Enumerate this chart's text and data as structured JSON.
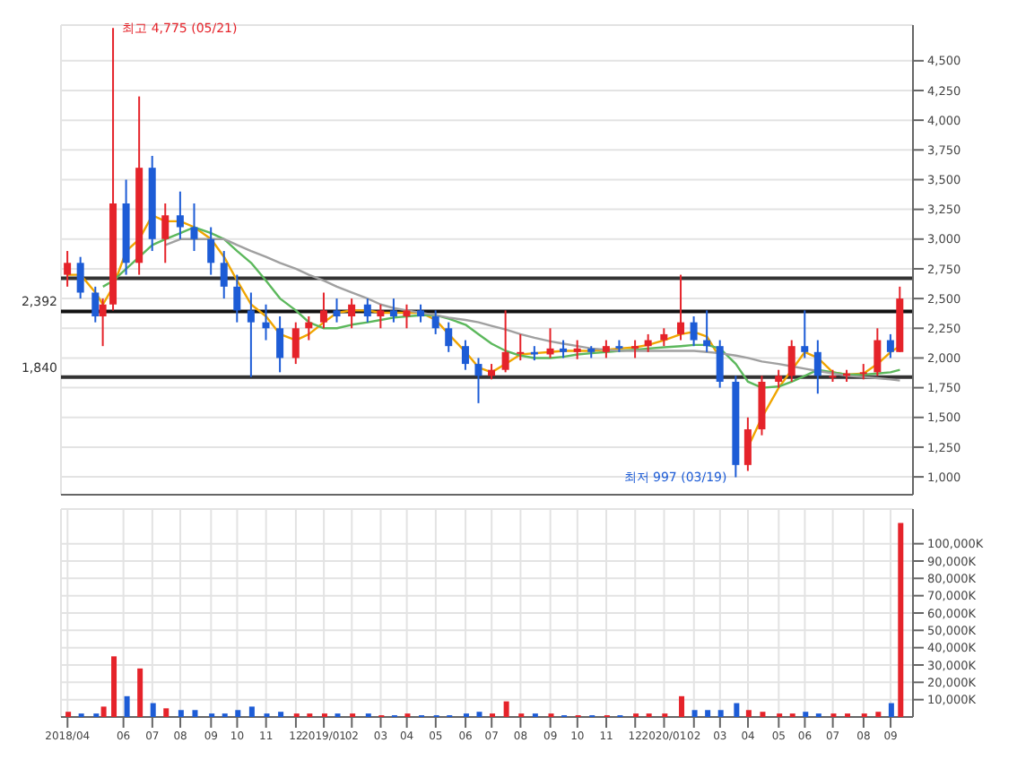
{
  "chart_data": [
    {
      "type": "candlestick",
      "x": [
        "2018-04-02",
        "2018-04-16",
        "2018-05-02",
        "2018-05-10",
        "2018-05-21",
        "2018-06-04",
        "2018-06-18",
        "2018-07-02",
        "2018-07-16",
        "2018-08-01",
        "2018-08-16",
        "2018-09-03",
        "2018-09-17",
        "2018-10-01",
        "2018-10-16",
        "2018-11-01",
        "2018-11-16",
        "2018-12-03",
        "2018-12-17",
        "2019-01-02",
        "2019-01-16",
        "2019-02-01",
        "2019-02-18",
        "2019-03-04",
        "2019-03-18",
        "2019-04-01",
        "2019-04-16",
        "2019-05-02",
        "2019-05-16",
        "2019-06-03",
        "2019-06-17",
        "2019-07-01",
        "2019-07-16",
        "2019-08-01",
        "2019-08-16",
        "2019-09-02",
        "2019-09-16",
        "2019-10-01",
        "2019-10-16",
        "2019-11-01",
        "2019-11-15",
        "2019-12-02",
        "2019-12-16",
        "2020-01-02",
        "2020-01-20",
        "2020-02-03",
        "2020-02-17",
        "2020-03-02",
        "2020-03-19",
        "2020-04-01",
        "2020-04-16",
        "2020-05-04",
        "2020-05-18",
        "2020-06-01",
        "2020-06-15",
        "2020-07-01",
        "2020-07-16",
        "2020-08-03",
        "2020-08-18",
        "2020-09-01",
        "2020-09-11"
      ],
      "ohlc": [
        [
          2700,
          2900,
          2600,
          2800
        ],
        [
          2800,
          2850,
          2500,
          2550
        ],
        [
          2550,
          2600,
          2300,
          2350
        ],
        [
          2350,
          2500,
          2100,
          2450
        ],
        [
          2450,
          4775,
          2400,
          3300
        ],
        [
          3300,
          3500,
          2700,
          2800
        ],
        [
          2800,
          4200,
          2700,
          3600
        ],
        [
          3600,
          3700,
          2900,
          3000
        ],
        [
          3000,
          3300,
          2800,
          3200
        ],
        [
          3200,
          3400,
          3000,
          3100
        ],
        [
          3100,
          3300,
          2900,
          3000
        ],
        [
          3000,
          3100,
          2700,
          2800
        ],
        [
          2800,
          2900,
          2500,
          2600
        ],
        [
          2600,
          2700,
          2300,
          2400
        ],
        [
          2400,
          2550,
          1840,
          2300
        ],
        [
          2300,
          2450,
          2150,
          2250
        ],
        [
          2250,
          2350,
          1880,
          2000
        ],
        [
          2000,
          2300,
          1950,
          2250
        ],
        [
          2250,
          2350,
          2150,
          2300
        ],
        [
          2300,
          2550,
          2250,
          2400
        ],
        [
          2400,
          2500,
          2300,
          2350
        ],
        [
          2350,
          2500,
          2250,
          2450
        ],
        [
          2450,
          2500,
          2300,
          2350
        ],
        [
          2350,
          2450,
          2250,
          2400
        ],
        [
          2400,
          2500,
          2300,
          2350
        ],
        [
          2350,
          2450,
          2250,
          2400
        ],
        [
          2400,
          2450,
          2300,
          2350
        ],
        [
          2350,
          2400,
          2200,
          2250
        ],
        [
          2250,
          2300,
          2050,
          2100
        ],
        [
          2100,
          2150,
          1900,
          1950
        ],
        [
          1950,
          2000,
          1620,
          1850
        ],
        [
          1850,
          1950,
          1820,
          1900
        ],
        [
          1900,
          2400,
          1880,
          2050
        ],
        [
          2050,
          2200,
          1980,
          2050
        ],
        [
          2050,
          2100,
          1980,
          2030
        ],
        [
          2030,
          2250,
          2000,
          2080
        ],
        [
          2080,
          2150,
          2000,
          2050
        ],
        [
          2050,
          2150,
          1990,
          2080
        ],
        [
          2080,
          2100,
          2000,
          2050
        ],
        [
          2050,
          2150,
          2000,
          2100
        ],
        [
          2100,
          2150,
          2050,
          2080
        ],
        [
          2080,
          2150,
          2000,
          2100
        ],
        [
          2100,
          2200,
          2050,
          2150
        ],
        [
          2150,
          2250,
          2100,
          2200
        ],
        [
          2200,
          2700,
          2150,
          2300
        ],
        [
          2300,
          2350,
          2100,
          2150
        ],
        [
          2150,
          2400,
          2050,
          2100
        ],
        [
          2100,
          2150,
          1750,
          1800
        ],
        [
          1800,
          1850,
          997,
          1100
        ],
        [
          1100,
          1500,
          1050,
          1400
        ],
        [
          1400,
          1850,
          1350,
          1800
        ],
        [
          1800,
          1900,
          1750,
          1850
        ],
        [
          1850,
          2150,
          1800,
          2100
        ],
        [
          2100,
          2400,
          2000,
          2050
        ],
        [
          2050,
          2150,
          1700,
          1850
        ],
        [
          1850,
          1900,
          1800,
          1850
        ],
        [
          1850,
          1900,
          1800,
          1870
        ],
        [
          1870,
          1950,
          1820,
          1880
        ],
        [
          1880,
          2250,
          1850,
          2150
        ],
        [
          2150,
          2200,
          2000,
          2050
        ],
        [
          2050,
          2600,
          2050,
          2500
        ]
      ],
      "colors": [
        "#e5232a",
        "#1d5cd6",
        "#1d5cd6",
        "#e5232a",
        "#e5232a",
        "#1d5cd6",
        "#e5232a",
        "#1d5cd6",
        "#e5232a",
        "#1d5cd6",
        "#1d5cd6",
        "#1d5cd6",
        "#1d5cd6",
        "#1d5cd6",
        "#1d5cd6",
        "#1d5cd6",
        "#1d5cd6",
        "#e5232a",
        "#e5232a",
        "#e5232a",
        "#1d5cd6",
        "#e5232a",
        "#1d5cd6",
        "#e5232a",
        "#1d5cd6",
        "#e5232a",
        "#1d5cd6",
        "#1d5cd6",
        "#1d5cd6",
        "#1d5cd6",
        "#1d5cd6",
        "#e5232a",
        "#e5232a",
        "#e5232a",
        "#1d5cd6",
        "#e5232a",
        "#1d5cd6",
        "#e5232a",
        "#1d5cd6",
        "#e5232a",
        "#1d5cd6",
        "#e5232a",
        "#e5232a",
        "#e5232a",
        "#e5232a",
        "#1d5cd6",
        "#1d5cd6",
        "#1d5cd6",
        "#1d5cd6",
        "#e5232a",
        "#e5232a",
        "#e5232a",
        "#e5232a",
        "#1d5cd6",
        "#1d5cd6",
        "#e5232a",
        "#e5232a",
        "#e5232a",
        "#e5232a",
        "#1d5cd6",
        "#e5232a"
      ],
      "series": [
        {
          "type": "line",
          "color": "#f0a500",
          "values": [
            2700,
            2700,
            2550,
            2450,
            2600,
            2900,
            3000,
            3200,
            3150,
            3150,
            3100,
            3000,
            2850,
            2650,
            2450,
            2350,
            2200,
            2150,
            2200,
            2300,
            2380,
            2400,
            2400,
            2380,
            2380,
            2380,
            2380,
            2320,
            2200,
            2050,
            1920,
            1880,
            1950,
            2030,
            2040,
            2050,
            2060,
            2060,
            2060,
            2070,
            2080,
            2090,
            2110,
            2150,
            2200,
            2220,
            2180,
            2000,
            null,
            1250,
            1500,
            1750,
            1900,
            2050,
            2000,
            1880,
            1860,
            1870,
            1950,
            2050,
            2100
          ]
        },
        {
          "type": "line",
          "color": "#5cb85c",
          "values": [
            null,
            null,
            null,
            2600,
            2650,
            2750,
            2850,
            2950,
            3000,
            3050,
            3100,
            3050,
            3000,
            2900,
            2800,
            2650,
            2500,
            2400,
            2300,
            2250,
            2250,
            2280,
            2300,
            2320,
            2340,
            2350,
            2360,
            2360,
            2330,
            2280,
            2200,
            2120,
            2060,
            2020,
            2000,
            2000,
            2010,
            2030,
            2040,
            2050,
            2060,
            2070,
            2080,
            2090,
            2100,
            2110,
            2110,
            2080,
            1950,
            1800,
            1750,
            1760,
            1800,
            1850,
            1900,
            1880,
            1860,
            1860,
            1870,
            1880,
            1900
          ]
        },
        {
          "type": "line",
          "color": "#a0a0a0",
          "values": [
            null,
            null,
            null,
            null,
            null,
            null,
            null,
            null,
            2950,
            3000,
            3000,
            3000,
            3000,
            2950,
            2900,
            2850,
            2800,
            2750,
            2700,
            2650,
            2600,
            2550,
            2500,
            2450,
            2420,
            2400,
            2380,
            2360,
            2340,
            2320,
            2300,
            2270,
            2240,
            2200,
            2170,
            2140,
            2120,
            2100,
            2080,
            2070,
            2060,
            2060,
            2060,
            2060,
            2060,
            2060,
            2050,
            2040,
            2020,
            2000,
            1970,
            1950,
            1930,
            1910,
            1890,
            1870,
            1850,
            1840,
            1830,
            1820,
            1810
          ]
        }
      ],
      "xlim": [
        "2018-03-26",
        "2020-09-25"
      ],
      "xticks": [
        {
          "value": "2018-04-02",
          "label": null
        },
        {
          "value": "2018-06-01",
          "label": null
        },
        {
          "value": "2018-07-02",
          "label": null
        },
        {
          "value": "2018-08-01",
          "label": null
        },
        {
          "value": "2018-09-03",
          "label": null
        },
        {
          "value": "2018-10-01",
          "label": null
        },
        {
          "value": "2018-11-01",
          "label": null
        },
        {
          "value": "2018-12-03",
          "label": null
        },
        {
          "value": "2019-01-02",
          "label": null
        },
        {
          "value": "2019-02-01",
          "label": null
        },
        {
          "value": "2019-03-04",
          "label": null
        },
        {
          "value": "2019-04-01",
          "label": null
        },
        {
          "value": "2019-05-02",
          "label": null
        },
        {
          "value": "2019-06-03",
          "label": null
        },
        {
          "value": "2019-07-01",
          "label": null
        },
        {
          "value": "2019-08-01",
          "label": null
        },
        {
          "value": "2019-09-02",
          "label": null
        },
        {
          "value": "2019-10-01",
          "label": null
        },
        {
          "value": "2019-11-01",
          "label": null
        },
        {
          "value": "2019-12-02",
          "label": null
        },
        {
          "value": "2020-01-02",
          "label": null
        },
        {
          "value": "2020-02-03",
          "label": null
        },
        {
          "value": "2020-03-02",
          "label": null
        },
        {
          "value": "2020-04-01",
          "label": null
        },
        {
          "value": "2020-05-04",
          "label": null
        },
        {
          "value": "2020-06-01",
          "label": null
        },
        {
          "value": "2020-07-01",
          "label": null
        },
        {
          "value": "2020-08-03",
          "label": null
        },
        {
          "value": "2020-09-01",
          "label": null
        }
      ],
      "ylim": [
        850,
        4800
      ],
      "yticks": [
        {
          "value": 1000,
          "label": "1,000"
        },
        {
          "value": 1250,
          "label": "1,250"
        },
        {
          "value": 1500,
          "label": "1,500"
        },
        {
          "value": 1750,
          "label": "1,750"
        },
        {
          "value": 2000,
          "label": "2,000"
        },
        {
          "value": 2250,
          "label": "2,250"
        },
        {
          "value": 2500,
          "label": "2,500"
        },
        {
          "value": 2750,
          "label": "2,750"
        },
        {
          "value": 3000,
          "label": "3,000"
        },
        {
          "value": 3250,
          "label": "3,250"
        },
        {
          "value": 3500,
          "label": "3,500"
        },
        {
          "value": 3750,
          "label": "3,750"
        },
        {
          "value": 4000,
          "label": "4,000"
        },
        {
          "value": 4250,
          "label": "4,250"
        },
        {
          "value": 4500,
          "label": "4,500"
        }
      ],
      "ref_lines": [
        {
          "axis": "y",
          "value": 2670,
          "color": "#333333"
        },
        {
          "axis": "y",
          "value": 2392,
          "label": "2,392",
          "color": "#111111"
        },
        {
          "axis": "y",
          "value": 1840,
          "label": "1,840",
          "color": "#333333"
        }
      ],
      "annotations": [
        {
          "text": "최고 4,775 (05/21)",
          "x": "2018-05-21",
          "y": 4775
        },
        {
          "text": "최저 997 (03/19)",
          "x": "2020-03-19",
          "y": 997
        }
      ],
      "grid": true,
      "tick_labels": "y"
    },
    {
      "type": "bar",
      "x": [
        "2018-04-02",
        "2018-04-16",
        "2018-05-02",
        "2018-05-10",
        "2018-05-21",
        "2018-06-04",
        "2018-06-18",
        "2018-07-02",
        "2018-07-16",
        "2018-08-01",
        "2018-08-16",
        "2018-09-03",
        "2018-09-17",
        "2018-10-01",
        "2018-10-16",
        "2018-11-01",
        "2018-11-16",
        "2018-12-03",
        "2018-12-17",
        "2019-01-02",
        "2019-01-16",
        "2019-02-01",
        "2019-02-18",
        "2019-03-04",
        "2019-03-18",
        "2019-04-01",
        "2019-04-16",
        "2019-05-02",
        "2019-05-16",
        "2019-06-03",
        "2019-06-17",
        "2019-07-01",
        "2019-07-16",
        "2019-08-01",
        "2019-08-16",
        "2019-09-02",
        "2019-09-16",
        "2019-10-01",
        "2019-10-16",
        "2019-11-01",
        "2019-11-15",
        "2019-12-02",
        "2019-12-16",
        "2020-01-02",
        "2020-01-20",
        "2020-02-03",
        "2020-02-17",
        "2020-03-02",
        "2020-03-19",
        "2020-04-01",
        "2020-04-16",
        "2020-05-04",
        "2020-05-18",
        "2020-06-01",
        "2020-06-15",
        "2020-07-01",
        "2020-07-16",
        "2020-08-03",
        "2020-08-18",
        "2020-09-01",
        "2020-09-11"
      ],
      "values": [
        3000,
        2000,
        2000,
        6000,
        35000,
        12000,
        28000,
        8000,
        5000,
        4000,
        4000,
        2000,
        2000,
        4000,
        6000,
        2000,
        3000,
        2000,
        2000,
        2000,
        2000,
        2000,
        2000,
        1000,
        1000,
        2000,
        1000,
        1000,
        1000,
        2000,
        3000,
        2000,
        9000,
        2000,
        2000,
        2000,
        1000,
        1000,
        1000,
        1000,
        1000,
        2000,
        2000,
        2000,
        12000,
        4000,
        4000,
        4000,
        8000,
        4000,
        3000,
        2000,
        2000,
        3000,
        2000,
        2000,
        2000,
        2000,
        3000,
        8000,
        112000
      ],
      "colors": [
        "#e5232a",
        "#1d5cd6",
        "#1d5cd6",
        "#e5232a",
        "#e5232a",
        "#1d5cd6",
        "#e5232a",
        "#1d5cd6",
        "#e5232a",
        "#1d5cd6",
        "#1d5cd6",
        "#1d5cd6",
        "#1d5cd6",
        "#1d5cd6",
        "#1d5cd6",
        "#1d5cd6",
        "#1d5cd6",
        "#e5232a",
        "#e5232a",
        "#e5232a",
        "#1d5cd6",
        "#e5232a",
        "#1d5cd6",
        "#e5232a",
        "#1d5cd6",
        "#e5232a",
        "#1d5cd6",
        "#1d5cd6",
        "#1d5cd6",
        "#1d5cd6",
        "#1d5cd6",
        "#e5232a",
        "#e5232a",
        "#e5232a",
        "#1d5cd6",
        "#e5232a",
        "#1d5cd6",
        "#e5232a",
        "#1d5cd6",
        "#e5232a",
        "#1d5cd6",
        "#e5232a",
        "#e5232a",
        "#e5232a",
        "#e5232a",
        "#1d5cd6",
        "#1d5cd6",
        "#1d5cd6",
        "#1d5cd6",
        "#e5232a",
        "#e5232a",
        "#e5232a",
        "#e5232a",
        "#1d5cd6",
        "#1d5cd6",
        "#e5232a",
        "#e5232a",
        "#e5232a",
        "#e5232a",
        "#1d5cd6",
        "#e5232a"
      ],
      "xlim": [
        "2018-03-26",
        "2020-09-25"
      ],
      "xticks": [
        {
          "value": "2018-04-02",
          "label": "2018/04"
        },
        {
          "value": "2018-06-01",
          "label": "06"
        },
        {
          "value": "2018-07-02",
          "label": "07"
        },
        {
          "value": "2018-08-01",
          "label": "08"
        },
        {
          "value": "2018-09-03",
          "label": "09"
        },
        {
          "value": "2018-10-01",
          "label": "10"
        },
        {
          "value": "2018-11-01",
          "label": "11"
        },
        {
          "value": "2018-12-03",
          "label": "12"
        },
        {
          "value": "2019-01-02",
          "label": "2019/01"
        },
        {
          "value": "2019-02-01",
          "label": "02"
        },
        {
          "value": "2019-03-04",
          "label": "03"
        },
        {
          "value": "2019-04-01",
          "label": "04"
        },
        {
          "value": "2019-05-02",
          "label": "05"
        },
        {
          "value": "2019-06-03",
          "label": "06"
        },
        {
          "value": "2019-07-01",
          "label": "07"
        },
        {
          "value": "2019-08-01",
          "label": "08"
        },
        {
          "value": "2019-09-02",
          "label": "09"
        },
        {
          "value": "2019-10-01",
          "label": "10"
        },
        {
          "value": "2019-11-01",
          "label": "11"
        },
        {
          "value": "2019-12-02",
          "label": "12"
        },
        {
          "value": "2020-01-02",
          "label": "2020/01"
        },
        {
          "value": "2020-02-03",
          "label": "02"
        },
        {
          "value": "2020-03-02",
          "label": "03"
        },
        {
          "value": "2020-04-01",
          "label": "04"
        },
        {
          "value": "2020-05-04",
          "label": "05"
        },
        {
          "value": "2020-06-01",
          "label": "06"
        },
        {
          "value": "2020-07-01",
          "label": "07"
        },
        {
          "value": "2020-08-03",
          "label": "08"
        },
        {
          "value": "2020-09-01",
          "label": "09"
        }
      ],
      "ylim": [
        0,
        120000
      ],
      "yticks": [
        {
          "value": 10000,
          "label": "10,000K"
        },
        {
          "value": 20000,
          "label": "20,000K"
        },
        {
          "value": 30000,
          "label": "30,000K"
        },
        {
          "value": 40000,
          "label": "40,000K"
        },
        {
          "value": 50000,
          "label": "50,000K"
        },
        {
          "value": 60000,
          "label": "60,000K"
        },
        {
          "value": 70000,
          "label": "70,000K"
        },
        {
          "value": 80000,
          "label": "80,000K"
        },
        {
          "value": 90000,
          "label": "90,000K"
        },
        {
          "value": 100000,
          "label": "100,000K"
        }
      ],
      "grid": true
    }
  ]
}
